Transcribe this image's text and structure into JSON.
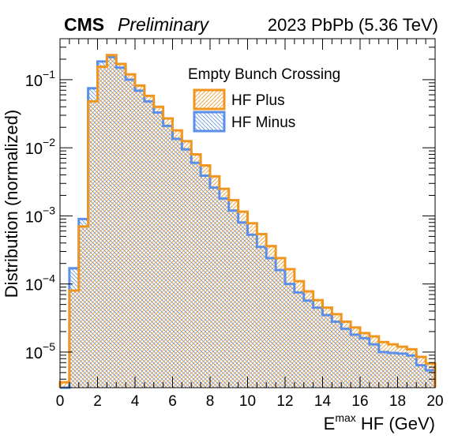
{
  "header": {
    "experiment": "CMS",
    "status": "Preliminary",
    "run": "2023 PbPb (5.36 TeV)"
  },
  "chart_data": {
    "type": "histogram",
    "xlabel": {
      "main": "E",
      "superscript": "max",
      "rest": " HF (GeV)"
    },
    "ylabel": "Distribution (normalized)",
    "xlim": [
      0,
      20
    ],
    "ylim": [
      3e-06,
      0.4
    ],
    "yscale": "log",
    "x_ticks": [
      0,
      2,
      4,
      6,
      8,
      10,
      12,
      14,
      16,
      18,
      20
    ],
    "x_tick_labels": [
      "0",
      "2",
      "4",
      "6",
      "8",
      "10",
      "12",
      "14",
      "16",
      "18",
      "20"
    ],
    "y_tick_labels": [
      {
        "value": 0.1,
        "base": "10",
        "exp": "−1"
      },
      {
        "value": 0.01,
        "base": "10",
        "exp": "−2"
      },
      {
        "value": 0.001,
        "base": "10",
        "exp": "−3"
      },
      {
        "value": 0.0001,
        "base": "10",
        "exp": "−4"
      },
      {
        "value": 1e-05,
        "base": "10",
        "exp": "−5"
      }
    ],
    "bin_width": 0.5,
    "legend": {
      "title": "Empty Bunch Crossing",
      "position": "top-right"
    },
    "series": [
      {
        "name": "HF Minus",
        "color": "#5b8fe8",
        "hatch": "backslash",
        "values": [
          0,
          0.00017,
          0.0009,
          0.075,
          0.185,
          0.215,
          0.15,
          0.1,
          0.069,
          0.048,
          0.033,
          0.021,
          0.0135,
          0.0095,
          0.006,
          0.0039,
          0.0026,
          0.0018,
          0.0012,
          0.0008,
          0.00053,
          0.00035,
          0.00024,
          0.00016,
          0.0001,
          7.5e-05,
          5.7e-05,
          4.5e-05,
          3.5e-05,
          2.8e-05,
          2.2e-05,
          1.8e-05,
          1.6e-05,
          1.3e-05,
          1e-05,
          9.7e-06,
          9.5e-06,
          8.9e-06,
          6.4e-06,
          5.4e-06
        ]
      },
      {
        "name": "HF Plus",
        "color": "#f0961e",
        "hatch": "slash",
        "values": [
          3.6e-06,
          8e-05,
          0.0007,
          0.048,
          0.155,
          0.23,
          0.17,
          0.12,
          0.082,
          0.058,
          0.04,
          0.027,
          0.018,
          0.0125,
          0.008,
          0.0055,
          0.0038,
          0.0025,
          0.0017,
          0.00115,
          0.00078,
          0.00054,
          0.00036,
          0.00024,
          0.000165,
          0.00011,
          7.8e-05,
          5.8e-05,
          4.5e-05,
          3.6e-05,
          2.8e-05,
          2.3e-05,
          1.9e-05,
          1.7e-05,
          1.4e-05,
          1.3e-05,
          1.2e-05,
          1.1e-05,
          8.5e-06,
          6.8e-06
        ]
      }
    ]
  }
}
